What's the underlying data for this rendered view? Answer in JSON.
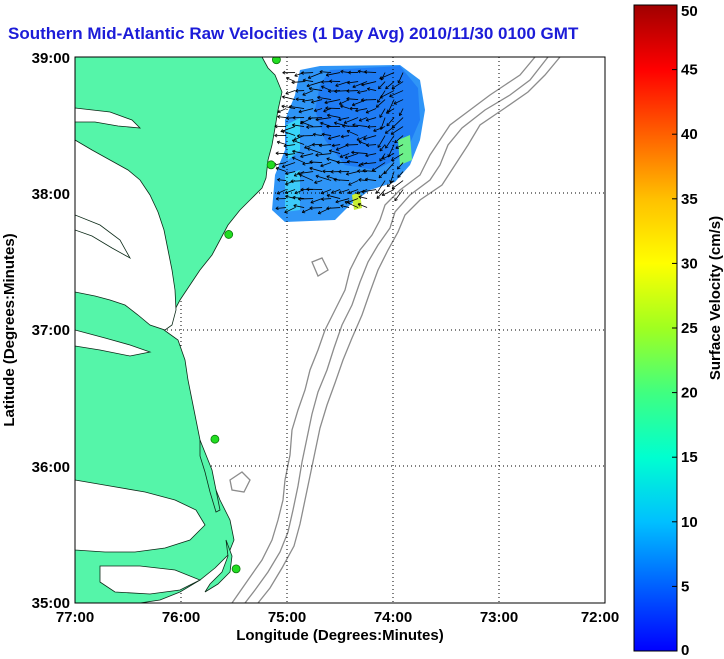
{
  "title": "Southern Mid-Atlantic Raw Velocities (1 Day Avg) 2010/11/30 0100 GMT",
  "map": {
    "lon_range": [
      -77.0,
      -72.0
    ],
    "lat_range": [
      35.0,
      39.0
    ],
    "lon_ticks": [
      {
        "value": -77.0,
        "label": "77:00"
      },
      {
        "value": -76.0,
        "label": "76:00"
      },
      {
        "value": -75.0,
        "label": "75:00"
      },
      {
        "value": -74.0,
        "label": "74:00"
      },
      {
        "value": -73.0,
        "label": "73:00"
      },
      {
        "value": -72.0,
        "label": "72:00"
      }
    ],
    "lat_ticks": [
      {
        "value": 39.0,
        "label": "39:00"
      },
      {
        "value": 38.0,
        "label": "38:00"
      },
      {
        "value": 37.0,
        "label": "37:00"
      },
      {
        "value": 36.0,
        "label": "36:00"
      },
      {
        "value": 35.0,
        "label": "35:00"
      }
    ],
    "xlabel": "Longitude (Degrees:Minutes)",
    "ylabel": "Latitude (Degrees:Minutes)",
    "grid": "dotted",
    "land_color": "#55f5a9",
    "bathymetry_color": "#8c8c8c",
    "radar_sites": [
      {
        "lon": -75.1,
        "lat": 38.98
      },
      {
        "lon": -75.15,
        "lat": 38.21
      },
      {
        "lon": -75.55,
        "lat": 37.7
      },
      {
        "lon": -75.68,
        "lat": 36.2
      },
      {
        "lon": -75.48,
        "lat": 35.25
      }
    ]
  },
  "colorbar": {
    "label": "Surface Velocity (cm/s)",
    "min": 0,
    "max": 50,
    "ticks": [
      {
        "value": 0,
        "label": "0"
      },
      {
        "value": 5,
        "label": "5"
      },
      {
        "value": 10,
        "label": "10"
      },
      {
        "value": 15,
        "label": "15"
      },
      {
        "value": 20,
        "label": "20"
      },
      {
        "value": 25,
        "label": "25"
      },
      {
        "value": 30,
        "label": "30"
      },
      {
        "value": 35,
        "label": "35"
      },
      {
        "value": 40,
        "label": "40"
      },
      {
        "value": 45,
        "label": "45"
      },
      {
        "value": 50,
        "label": "50"
      }
    ],
    "colormap": "jet"
  },
  "velocity_field": {
    "lon_range": [
      -75.15,
      -73.85
    ],
    "lat_range": [
      37.78,
      38.93
    ],
    "typical_speed_cm_s": [
      6,
      12
    ],
    "mean_direction": "westward"
  }
}
